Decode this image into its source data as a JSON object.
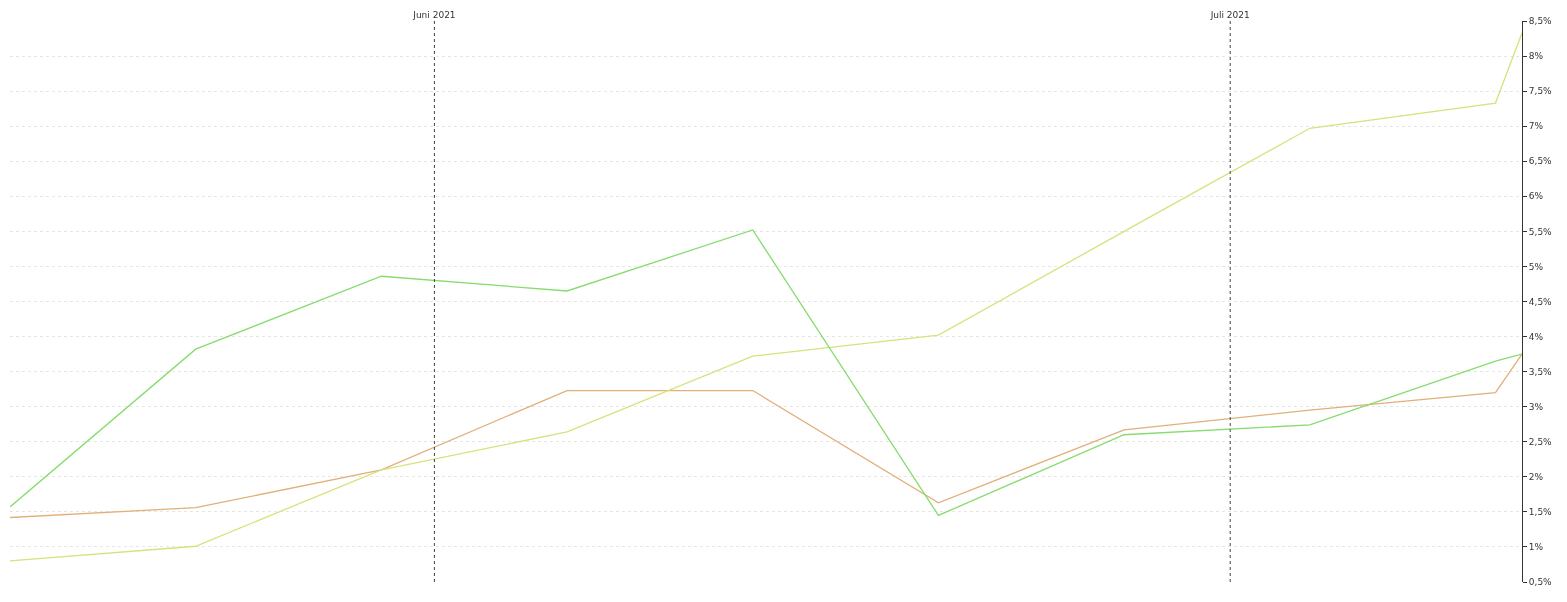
{
  "chart_data": {
    "type": "line",
    "x": [
      "2021-05-16",
      "2021-05-23",
      "2021-05-30",
      "2021-06-06",
      "2021-06-13",
      "2021-06-20",
      "2021-06-27",
      "2021-07-04",
      "2021-07-11",
      "2021-07-12"
    ],
    "series": [
      {
        "color": "#e0b07a",
        "values": [
          1.42,
          1.56,
          2.1,
          3.23,
          3.23,
          1.63,
          2.67,
          2.95,
          3.2,
          3.75
        ]
      },
      {
        "color": "#d6e27c",
        "values": [
          0.8,
          1.01,
          2.1,
          2.64,
          3.72,
          4.02,
          5.5,
          6.97,
          7.33,
          8.33
        ]
      },
      {
        "color": "#86dc6e",
        "values": [
          1.57,
          3.82,
          4.86,
          4.65,
          5.52,
          1.45,
          2.6,
          2.74,
          3.65,
          3.75
        ]
      }
    ],
    "xlim": [
      "2021-05-16",
      "2021-07-12"
    ],
    "xticks": [
      {
        "value": "2021-06-01",
        "label": "Juni 2021"
      },
      {
        "value": "2021-07-01",
        "label": "Juli 2021"
      }
    ],
    "ylim": [
      0.5,
      8.5
    ],
    "yticks": [
      {
        "value": 0.5,
        "label": "0,5%"
      },
      {
        "value": 1,
        "label": "1%"
      },
      {
        "value": 1.5,
        "label": "1,5%"
      },
      {
        "value": 2,
        "label": "2%"
      },
      {
        "value": 2.5,
        "label": "2,5%"
      },
      {
        "value": 3,
        "label": "3%"
      },
      {
        "value": 3.5,
        "label": "3,5%"
      },
      {
        "value": 4,
        "label": "4%"
      },
      {
        "value": 4.5,
        "label": "4,5%"
      },
      {
        "value": 5,
        "label": "5%"
      },
      {
        "value": 5.5,
        "label": "5,5%"
      },
      {
        "value": 6,
        "label": "6%"
      },
      {
        "value": 6.5,
        "label": "6,5%"
      },
      {
        "value": 7,
        "label": "7%"
      },
      {
        "value": 7.5,
        "label": "7,5%"
      },
      {
        "value": 8,
        "label": "8%"
      },
      {
        "value": 8.5,
        "label": "8,5%"
      }
    ],
    "ref_lines": [
      {
        "axis": "x",
        "value": "2021-06-01",
        "color": "#444444",
        "line_style": "dotted"
      },
      {
        "axis": "x",
        "value": "2021-07-01",
        "color": "#444444",
        "line_style": "dotted"
      }
    ],
    "grid": "y"
  }
}
